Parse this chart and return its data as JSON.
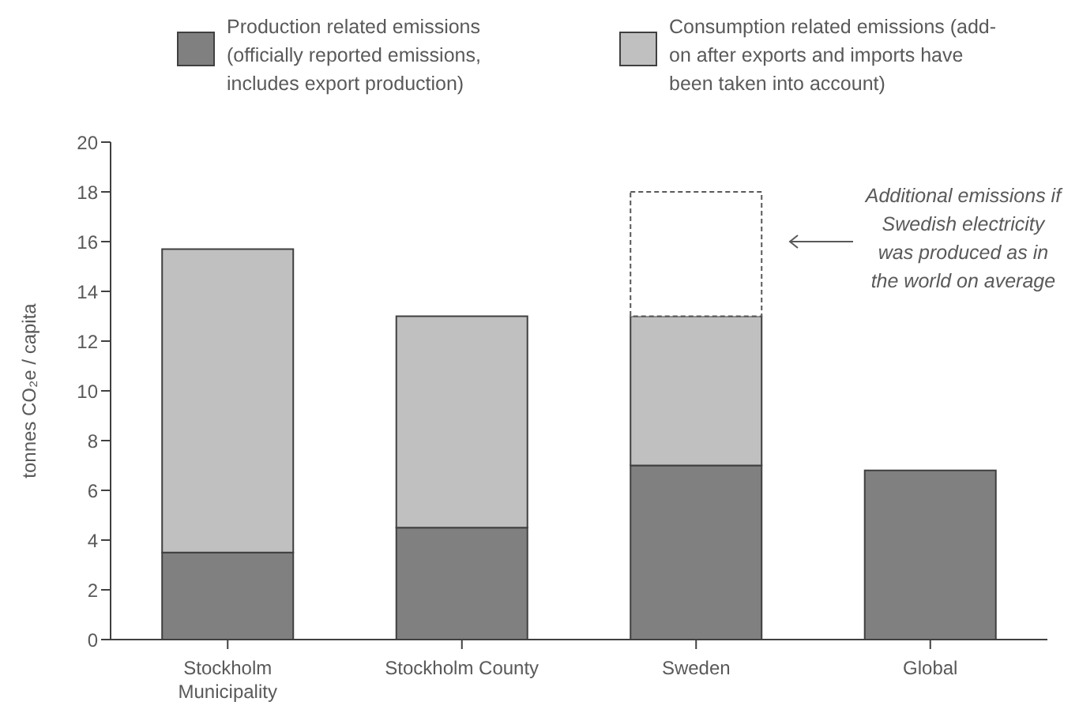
{
  "chart_data": {
    "type": "bar",
    "stacked": true,
    "ylabel": "tonnes CO₂e / capita",
    "categories": [
      "Stockholm Municipality",
      "Stockholm County",
      "Sweden",
      "Global"
    ],
    "series": [
      {
        "name": "Production related emissions (officially reported emissions, includes export production)",
        "color": "#808080",
        "values": [
          3.5,
          4.5,
          7,
          6.8
        ]
      },
      {
        "name": "Consumption related emissions (add-on after exports and imports have been taken into account)",
        "color": "#c0c0c0",
        "values": [
          12.2,
          8.5,
          6,
          null
        ]
      },
      {
        "color": "#ffffff",
        "line_style": "dashed",
        "values": [
          null,
          null,
          5,
          null
        ]
      }
    ],
    "ylim": [
      0,
      20
    ],
    "yticks": [
      0,
      2,
      4,
      6,
      8,
      10,
      12,
      14,
      16,
      18,
      20
    ],
    "grid": false,
    "legend": "top",
    "annotations": [
      "Additional emissions if Swedish electricity was produced as in the world on average"
    ]
  }
}
